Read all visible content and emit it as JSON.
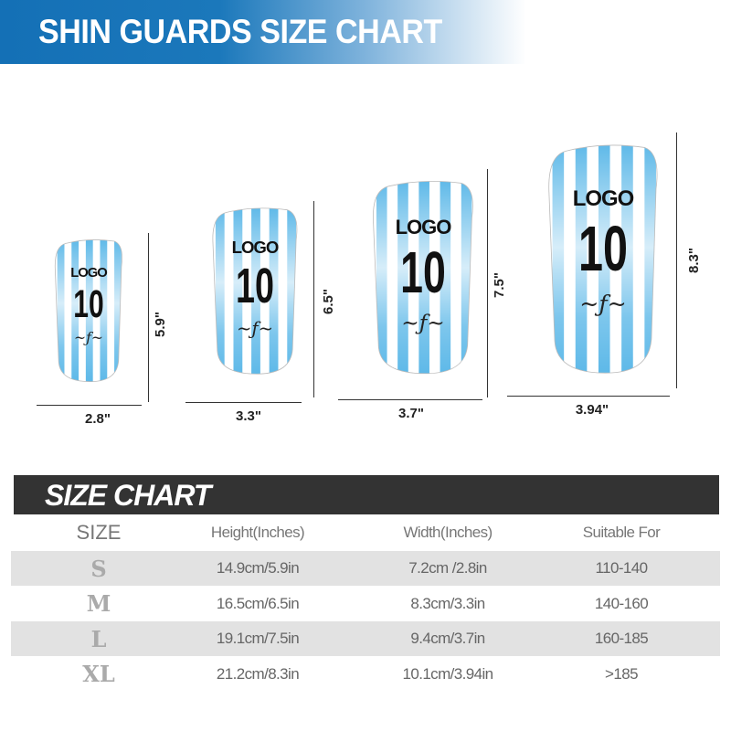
{
  "banner": {
    "title": "SHIN GUARDS SIZE CHART",
    "color": "#1470b6"
  },
  "guards": [
    {
      "size": "S",
      "logo": "LOGO",
      "number": "10",
      "height": "5.9\"",
      "width": "2.8\""
    },
    {
      "size": "M",
      "logo": "LOGO",
      "number": "10",
      "height": "6.5\"",
      "width": "3.3\""
    },
    {
      "size": "L",
      "logo": "LOGO",
      "number": "10",
      "height": "7.5\"",
      "width": "3.7\""
    },
    {
      "size": "XL",
      "logo": "LOGO",
      "number": "10",
      "height": "8.3\"",
      "width": "3.94\""
    }
  ],
  "stripe_color": "#5cb8e8",
  "size_chart": {
    "title": "SIZE CHART",
    "headers": [
      "SIZE",
      "Height(Inches)",
      "Width(Inches)",
      "Suitable For"
    ],
    "rows": [
      [
        "S",
        "14.9cm/5.9in",
        "7.2cm /2.8in",
        "110-140"
      ],
      [
        "M",
        "16.5cm/6.5in",
        "8.3cm/3.3in",
        "140-160"
      ],
      [
        "L",
        "19.1cm/7.5in",
        "9.4cm/3.7in",
        "160-185"
      ],
      [
        "XL",
        "21.2cm/8.3in",
        "10.1cm/3.94in",
        ">185"
      ]
    ]
  }
}
